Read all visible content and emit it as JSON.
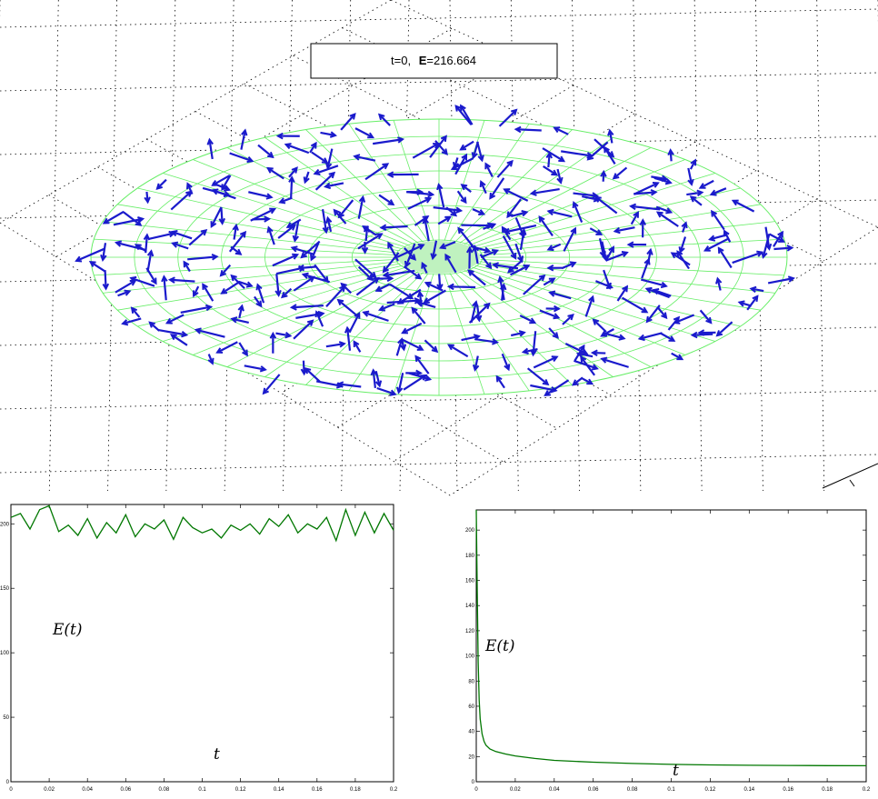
{
  "chart_data": [
    {
      "type": "quiver3d",
      "title_box": {
        "t_text": "t=0,",
        "e_label": "E",
        "e_value": "=216.664"
      },
      "grid": true,
      "mesh_color": "#66ee66",
      "arrow_color": "#1a1acc"
    },
    {
      "type": "line",
      "xlabel": "t",
      "ylabel": "E(t)",
      "xlim": [
        0,
        0.2
      ],
      "ylim": [
        0,
        215
      ],
      "xticks": [
        "0",
        "0.02",
        "0.04",
        "0.06",
        "0.08",
        "0.1",
        "0.12",
        "0.14",
        "0.16",
        "0.18",
        "0.2"
      ],
      "yticks": [
        "0",
        "50",
        "100",
        "150",
        "200"
      ],
      "line_color": "#007700",
      "series": [
        {
          "x": [
            0,
            0.005,
            0.01,
            0.015,
            0.02,
            0.025,
            0.03,
            0.035,
            0.04,
            0.045,
            0.05,
            0.055,
            0.06,
            0.065,
            0.07,
            0.075,
            0.08,
            0.085,
            0.09,
            0.095,
            0.1,
            0.105,
            0.11,
            0.115,
            0.12,
            0.125,
            0.13,
            0.135,
            0.14,
            0.145,
            0.15,
            0.155,
            0.16,
            0.165,
            0.17,
            0.175,
            0.18,
            0.185,
            0.19,
            0.195,
            0.2
          ],
          "values": [
            205,
            208,
            196,
            211,
            214,
            194,
            199,
            191,
            204,
            189,
            201,
            193,
            207,
            190,
            200,
            196,
            203,
            188,
            205,
            197,
            193,
            196,
            189,
            199,
            195,
            200,
            192,
            204,
            198,
            207,
            193,
            200,
            196,
            205,
            187,
            211,
            191,
            209,
            193,
            208,
            195
          ]
        }
      ]
    },
    {
      "type": "line",
      "xlabel": "t",
      "ylabel": "E(t)",
      "xlim": [
        0,
        0.2
      ],
      "ylim": [
        0,
        216
      ],
      "xticks": [
        "0",
        "0.02",
        "0.04",
        "0.06",
        "0.08",
        "0.1",
        "0.12",
        "0.14",
        "0.16",
        "0.18",
        "0.2"
      ],
      "yticks": [
        "0",
        "20",
        "40",
        "60",
        "80",
        "100",
        "120",
        "140",
        "160",
        "180",
        "200"
      ],
      "line_color": "#007700",
      "series": [
        {
          "x": [
            0,
            0.0005,
            0.001,
            0.0015,
            0.002,
            0.003,
            0.004,
            0.005,
            0.007,
            0.01,
            0.015,
            0.02,
            0.03,
            0.04,
            0.06,
            0.08,
            0.1,
            0.12,
            0.14,
            0.16,
            0.18,
            0.2
          ],
          "values": [
            216,
            150,
            95,
            65,
            50,
            38,
            32,
            29,
            26,
            24,
            22,
            20.5,
            18.5,
            17,
            15.5,
            14.5,
            13.8,
            13.4,
            13.1,
            12.9,
            12.8,
            12.7
          ]
        }
      ]
    }
  ]
}
